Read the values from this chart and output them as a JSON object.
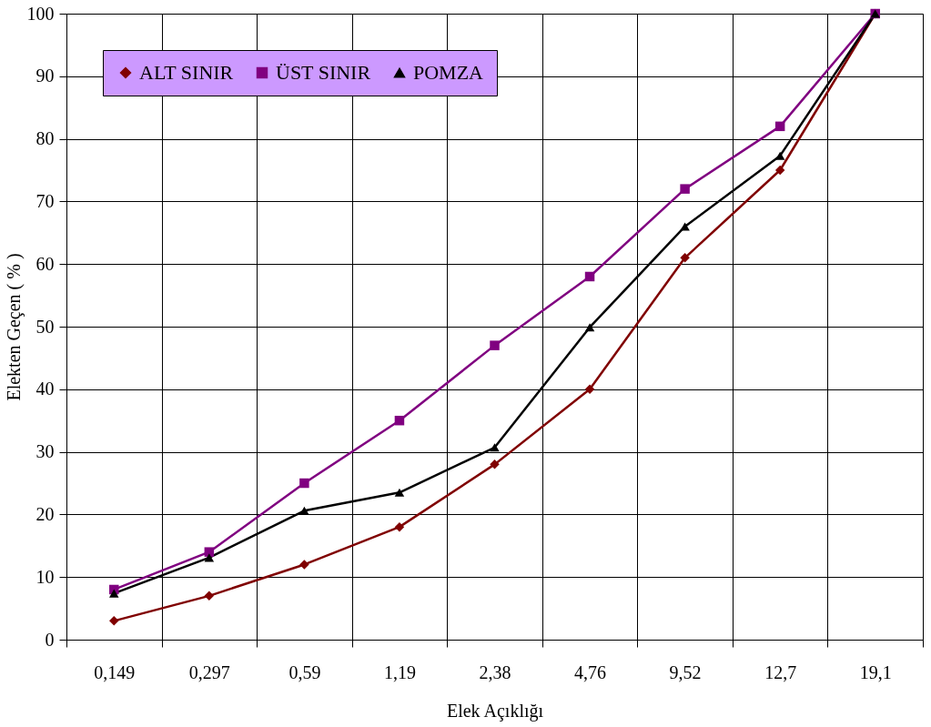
{
  "chart_data": {
    "type": "line",
    "xlabel": "Elek Açıklığı",
    "ylabel": "Elekten Geçen ( % )",
    "categories": [
      "0,149",
      "0,297",
      "0,59",
      "1,19",
      "2,38",
      "4,76",
      "9,52",
      "12,7",
      "19,1"
    ],
    "series": [
      {
        "name": "ALT SINIR",
        "color": "#800000",
        "marker": "diamond",
        "values": [
          3,
          7,
          12,
          18,
          28,
          40,
          61,
          75,
          100
        ]
      },
      {
        "name": "ÜST SINIR",
        "color": "#800080",
        "marker": "square",
        "values": [
          8,
          14,
          25,
          35,
          47,
          58,
          72,
          82,
          100
        ]
      },
      {
        "name": "POMZA",
        "color": "#000000",
        "marker": "triangle",
        "values": [
          7.4,
          13.1,
          20.6,
          23.5,
          30.7,
          49.9,
          66,
          77.3,
          100
        ]
      }
    ],
    "ylim": [
      0,
      100
    ],
    "yticks": [
      0,
      10,
      20,
      30,
      40,
      50,
      60,
      70,
      80,
      90,
      100
    ],
    "grid": true,
    "legend": "top left",
    "line_style": "solid"
  }
}
